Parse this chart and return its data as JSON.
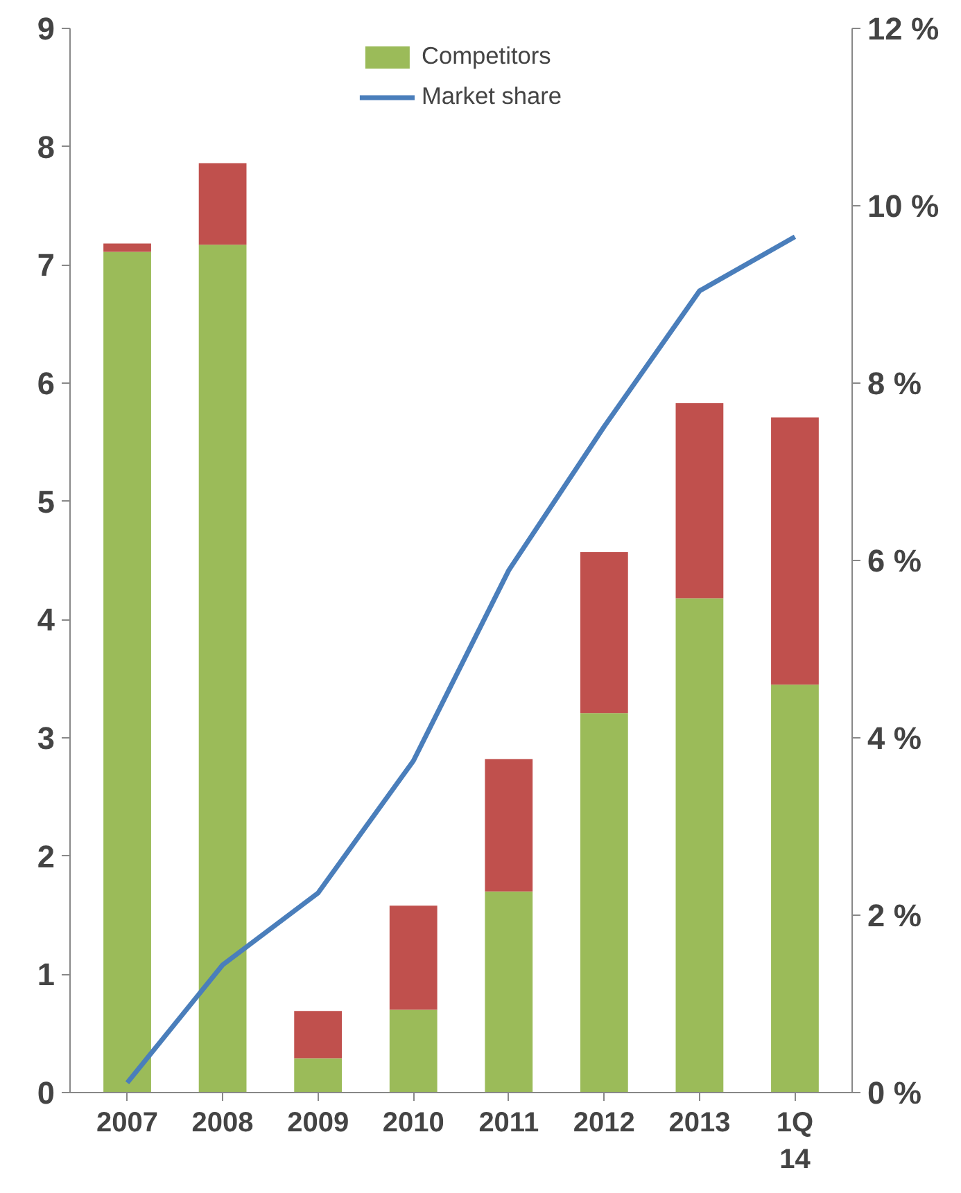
{
  "chart_data": {
    "type": "bar",
    "stacked": true,
    "categories": [
      "2007",
      "2008",
      "2009",
      "2010",
      "2011",
      "2012",
      "2013",
      "1Q 14"
    ],
    "series": [
      {
        "name": "Competitors",
        "color": "#9bbb59",
        "values": [
          7.11,
          7.17,
          0.29,
          0.7,
          1.7,
          3.21,
          4.18,
          3.45
        ]
      },
      {
        "color": "#c0504d",
        "values": [
          0.07,
          0.69,
          0.4,
          0.88,
          1.12,
          1.36,
          1.65,
          2.26
        ]
      },
      {
        "name": "Market share",
        "type": "line",
        "axis": "y2",
        "color": "#4a7ebb",
        "values": [
          0.11,
          1.44,
          2.25,
          3.74,
          5.89,
          7.51,
          9.04,
          9.65
        ]
      }
    ],
    "ylim": [
      0,
      9
    ],
    "yticks": [
      0,
      1,
      2,
      3,
      4,
      5,
      6,
      7,
      8,
      9
    ],
    "y2lim": [
      0,
      12
    ],
    "y2ticks": [
      {
        "value": 0,
        "label": "0 %"
      },
      {
        "value": 2,
        "label": "2 %"
      },
      {
        "value": 4,
        "label": "4 %"
      },
      {
        "value": 6,
        "label": "6 %"
      },
      {
        "value": 8,
        "label": "8 %"
      },
      {
        "value": 10,
        "label": "10 %"
      },
      {
        "value": 12,
        "label": "12 %"
      }
    ],
    "legend": "top",
    "grid": false,
    "marker": "none",
    "line_style": "solid"
  }
}
